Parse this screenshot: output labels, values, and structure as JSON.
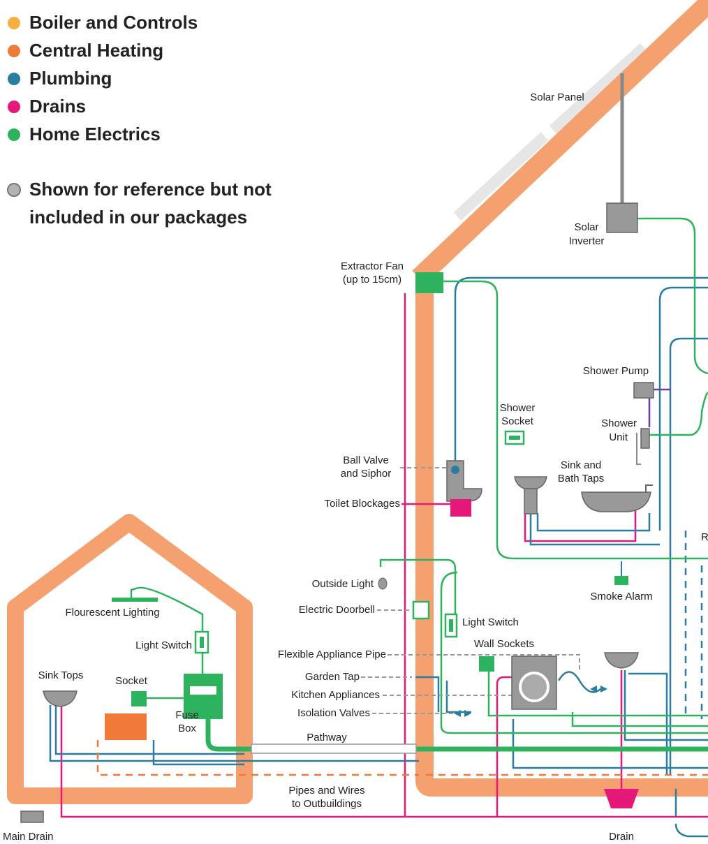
{
  "legend": {
    "items": [
      {
        "label": "Boiler and Controls",
        "color": "#f9b040"
      },
      {
        "label": "Central Heating",
        "color": "#f07a3a"
      },
      {
        "label": "Plumbing",
        "color": "#2a7ca0"
      },
      {
        "label": "Drains",
        "color": "#e6197a"
      },
      {
        "label": "Home Electrics",
        "color": "#2db35d"
      }
    ],
    "reference": {
      "label": [
        "Shown for reference but not",
        "included in our packages"
      ],
      "color": "#b3b3b3"
    }
  },
  "labels": {
    "solar_panel": "Solar Panel",
    "solar_inverter": [
      "Solar",
      "Inverter"
    ],
    "extractor_fan": [
      "Extractor Fan",
      "(up to 15cm)"
    ],
    "shower_pump": "Shower Pump",
    "shower_socket": [
      "Shower",
      "Socket"
    ],
    "shower_unit": [
      "Shower",
      "Unit"
    ],
    "ball_valve": [
      "Ball Valve",
      "and Siphor"
    ],
    "sink_bath_taps": [
      "Sink and",
      "Bath Taps"
    ],
    "toilet_blockages": "Toilet Blockages",
    "cut_off_label": "R",
    "outside_light": "Outside Light",
    "smoke_alarm": "Smoke Alarm",
    "electric_doorbell": "Electric Doorbell",
    "light_switch_house": "Light Switch",
    "fluorescent_lighting": "Flourescent Lighting",
    "light_switch_outbuilding": "Light Switch",
    "wall_sockets": "Wall Sockets",
    "flexible_appliance_pipe": "Flexible Appliance Pipe",
    "sink_tops": "Sink Tops",
    "socket": "Socket",
    "garden_tap": "Garden Tap",
    "kitchen_appliances": "Kitchen Appliances",
    "fuse_box": [
      "Fuse",
      "Box"
    ],
    "isolation_valves": "Isolation Valves",
    "pathway": "Pathway",
    "pipes_and_wires": [
      "Pipes and Wires",
      "to Outbuildings"
    ],
    "main_drain": "Main Drain",
    "drain": "Drain"
  }
}
